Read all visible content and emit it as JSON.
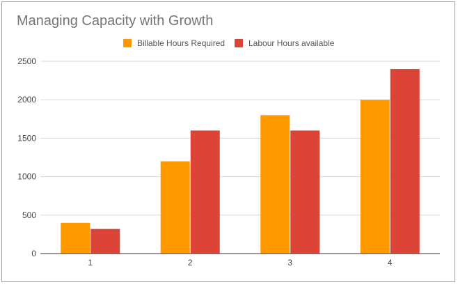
{
  "chart_data": {
    "type": "bar",
    "title": "Managing Capacity with Growth",
    "xlabel": "",
    "ylabel": "",
    "categories": [
      "1",
      "2",
      "3",
      "4"
    ],
    "series": [
      {
        "name": "Billable Hours Required",
        "color": "#ff9900",
        "values": [
          400,
          1200,
          1800,
          2000
        ]
      },
      {
        "name": "Labour Hours available",
        "color": "#db4437",
        "values": [
          320,
          1600,
          1600,
          2400
        ]
      }
    ],
    "ylim": [
      0,
      2500
    ],
    "yticks": [
      "0",
      "500",
      "1000",
      "1500",
      "2000",
      "2500"
    ],
    "grid": true,
    "legend_position": "top"
  }
}
